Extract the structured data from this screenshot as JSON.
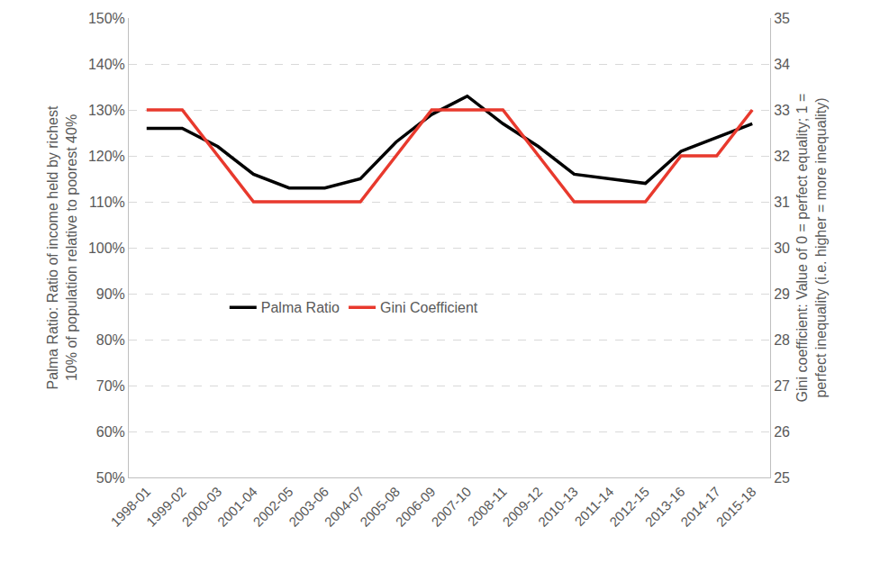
{
  "chart_data": {
    "type": "line",
    "categories": [
      "1998-01",
      "1999-02",
      "2000-03",
      "2001-04",
      "2002-05",
      "2003-06",
      "2004-07",
      "2005-08",
      "2006-09",
      "2007-10",
      "2008-11",
      "2009-12",
      "2010-13",
      "2011-14",
      "2012-15",
      "2013-16",
      "2014-17",
      "2015-18"
    ],
    "y_label": "Palma Ratio: Ratio of income held by richest 10% of population relative to poorest 40%",
    "y2_label": "Gini coefficient: Value of 0 = perfect equality; 1 = perfect inequality (i.e. higher = more inequality)",
    "series": [
      {
        "name": "Palma Ratio",
        "color": "#000000",
        "axis": "y",
        "values": [
          126,
          126,
          122,
          116,
          113,
          113,
          115,
          123,
          129,
          133,
          127,
          122,
          116,
          115,
          114,
          121,
          124,
          127
        ]
      },
      {
        "name": "Gini Coefficient",
        "color": "#e8392d",
        "axis": "y2",
        "values": [
          33,
          33,
          32,
          31,
          31,
          31,
          31,
          32,
          33,
          33,
          33,
          32,
          31,
          31,
          31,
          32,
          32,
          33
        ]
      }
    ],
    "ylim": [
      50,
      150
    ],
    "yticks": [
      {
        "value": 50,
        "label": "50%"
      },
      {
        "value": 60,
        "label": "60%"
      },
      {
        "value": 70,
        "label": "70%"
      },
      {
        "value": 80,
        "label": "80%"
      },
      {
        "value": 90,
        "label": "90%"
      },
      {
        "value": 100,
        "label": "100%"
      },
      {
        "value": 110,
        "label": "110%"
      },
      {
        "value": 120,
        "label": "120%"
      },
      {
        "value": 130,
        "label": "130%"
      },
      {
        "value": 140,
        "label": "140%"
      },
      {
        "value": 150,
        "label": "150%"
      }
    ],
    "y2lim": [
      25,
      35
    ],
    "y2ticks": [
      25,
      26,
      27,
      28,
      29,
      30,
      31,
      32,
      33,
      34,
      35
    ],
    "grid": true,
    "legend": "center"
  }
}
